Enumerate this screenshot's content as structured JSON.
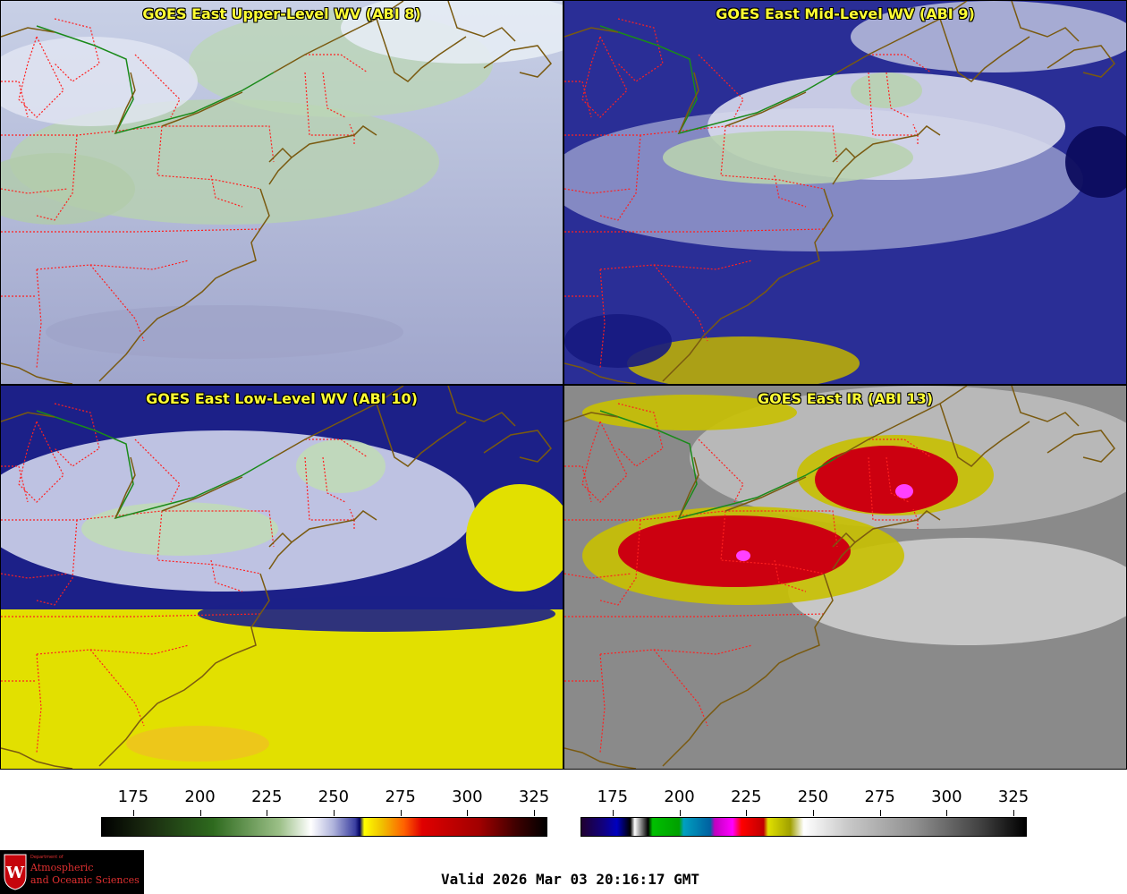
{
  "panels": [
    {
      "id": "p1",
      "title": "GOES East Upper-Level WV (ABI 8)"
    },
    {
      "id": "p2",
      "title": "GOES East Mid-Level WV (ABI 9)"
    },
    {
      "id": "p3",
      "title": "GOES East Low-Level WV (ABI 10)"
    },
    {
      "id": "p4",
      "title": "GOES East IR (ABI 13)"
    }
  ],
  "colorbar_wv": {
    "ticks": [
      "175",
      "200",
      "225",
      "250",
      "275",
      "300",
      "325"
    ],
    "range": [
      163,
      330
    ]
  },
  "colorbar_ir": {
    "ticks": [
      "175",
      "200",
      "225",
      "250",
      "275",
      "300",
      "325"
    ],
    "range": [
      163,
      330
    ]
  },
  "logo": {
    "dept": "Department of",
    "line1": "Atmospheric",
    "line2": "and Oceanic Sciences",
    "crest_letter": "W"
  },
  "valid_time": "Valid 2026 Mar 03 20:16:17 GMT",
  "colors": {
    "title_text": "#ffff33",
    "state_border": "#ff2020",
    "coastline": "#7a5a10",
    "intl_border": "#1a8a1a"
  }
}
